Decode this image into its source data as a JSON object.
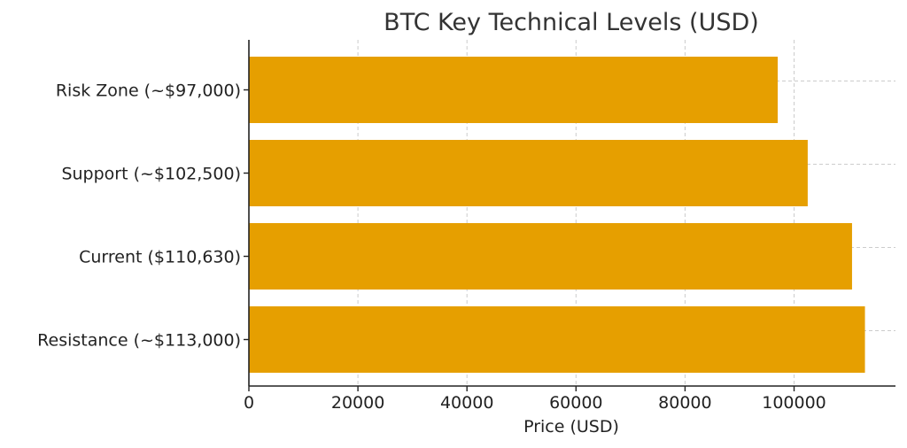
{
  "chart_data": {
    "type": "bar",
    "orientation": "horizontal",
    "title": "BTC Key Technical Levels (USD)",
    "xlabel": "Price (USD)",
    "ylabel": "",
    "categories": [
      "Risk Zone (~$97,000)",
      "Support (~$102,500)",
      "Current ($110,630)",
      "Resistance (~$113,000)"
    ],
    "values": [
      97000,
      102500,
      110630,
      113000
    ],
    "xlim": [
      0,
      118600
    ],
    "xticks": [
      0,
      20000,
      40000,
      60000,
      80000,
      100000
    ],
    "grid": true,
    "bar_color": "#E69F00"
  }
}
